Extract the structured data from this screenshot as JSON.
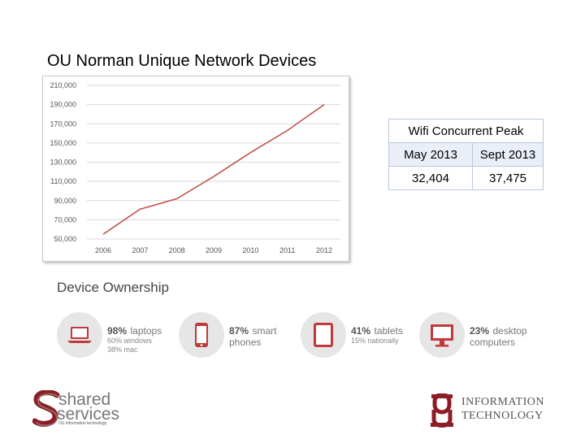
{
  "title": "OU Norman Unique Network Devices",
  "chart_data": {
    "type": "line",
    "x": [
      2006,
      2007,
      2008,
      2009,
      2010,
      2011,
      2012
    ],
    "y": [
      55000,
      81000,
      92000,
      115000,
      140000,
      163000,
      190000
    ],
    "x_ticks": [
      "2006",
      "2007",
      "2008",
      "2009",
      "2010",
      "2011",
      "2012"
    ],
    "y_ticks": [
      "50,000",
      "70,000",
      "90,000",
      "110,000",
      "130,000",
      "150,000",
      "170,000",
      "190,000",
      "210,000"
    ],
    "ylim": [
      50000,
      210000
    ],
    "grid": true,
    "line_color": "#c0504d"
  },
  "wifi": {
    "header": "Wifi Concurrent Peak",
    "col1_label": "May 2013",
    "col2_label": "Sept 2013",
    "col1_value": "32,404",
    "col2_value": "37,475"
  },
  "ownership": {
    "title": "Device Ownership",
    "items": [
      {
        "pct": "98%",
        "label": "laptops",
        "sub1": "60% windows",
        "sub2": "38% mac",
        "icon": "laptop-icon"
      },
      {
        "pct": "87%",
        "label": "smart",
        "label2": "phones",
        "icon": "smartphone-icon"
      },
      {
        "pct": "41%",
        "label": "tablets",
        "sub1": "15% nationally",
        "icon": "tablet-icon"
      },
      {
        "pct": "23%",
        "label": "desktop",
        "label2": "computers",
        "icon": "desktop-icon"
      }
    ],
    "accent": "#c0393b"
  },
  "logos": {
    "shared_line1": "shared",
    "shared_line2": "services",
    "shared_tagline": "OU information technology",
    "it_line1": "INFORMATION",
    "it_line2": "TECHNOLOGY",
    "brand_color": "#8c1d24"
  }
}
